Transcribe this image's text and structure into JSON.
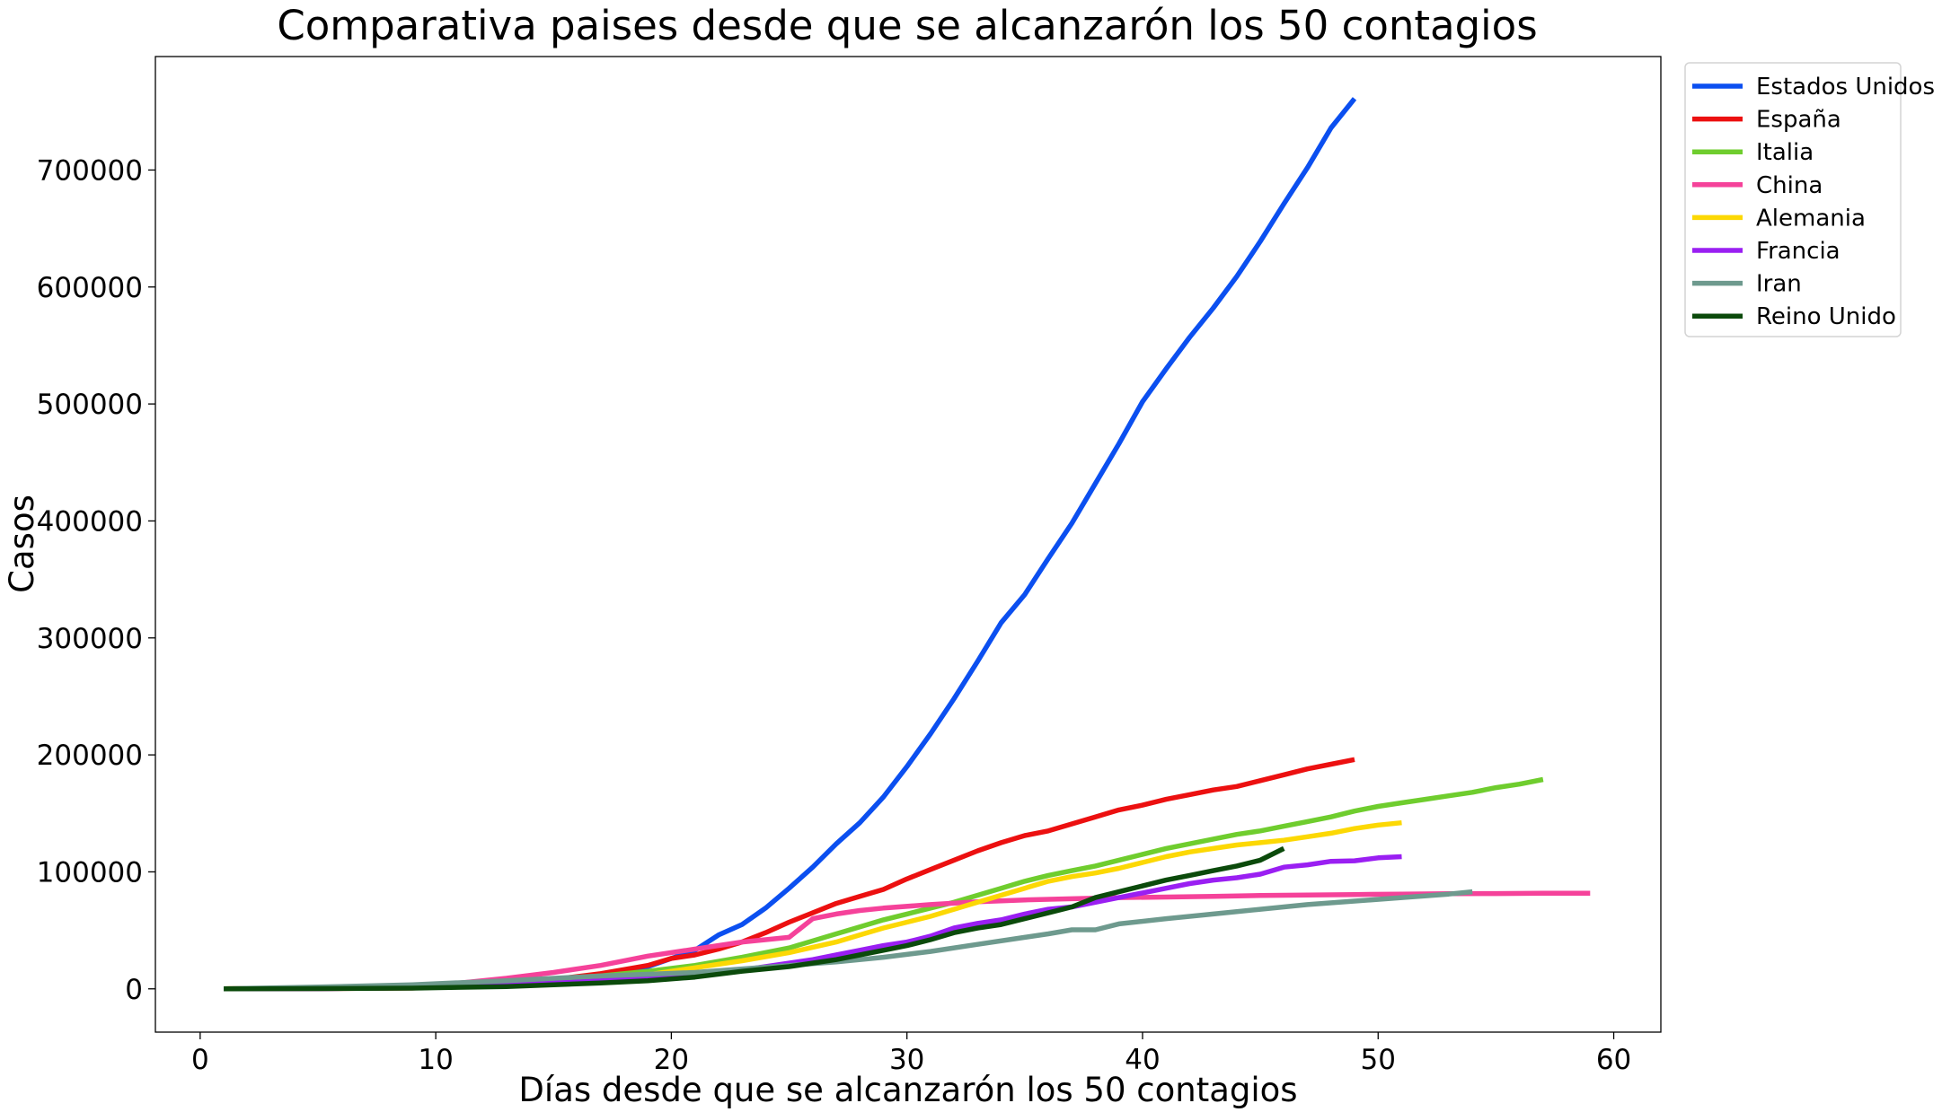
{
  "chart_data": {
    "type": "line",
    "title": "Comparativa paises desde que se alcanzarón los 50 contagios",
    "xlabel": "Días desde que se alcanzarón los 50 contagios",
    "ylabel": "Casos",
    "xlim": [
      -1.9,
      62
    ],
    "ylim": [
      -37000,
      797000
    ],
    "xticks": [
      0,
      10,
      20,
      30,
      40,
      50,
      60
    ],
    "yticks": [
      0,
      100000,
      200000,
      300000,
      400000,
      500000,
      600000,
      700000
    ],
    "grid": false,
    "legend_position": "outside-top-right",
    "series": [
      {
        "name": "Estados Unidos",
        "color": "#0b4ff0",
        "points": [
          [
            1,
            50
          ],
          [
            5,
            200
          ],
          [
            9,
            1000
          ],
          [
            13,
            3500
          ],
          [
            17,
            9500
          ],
          [
            19,
            19000
          ],
          [
            21,
            33000
          ],
          [
            22,
            46000
          ],
          [
            23,
            55000
          ],
          [
            24,
            69000
          ],
          [
            25,
            86000
          ],
          [
            26,
            104000
          ],
          [
            27,
            124000
          ],
          [
            28,
            142000
          ],
          [
            29,
            164000
          ],
          [
            30,
            190000
          ],
          [
            31,
            218000
          ],
          [
            32,
            248000
          ],
          [
            33,
            280000
          ],
          [
            34,
            313000
          ],
          [
            35,
            337000
          ],
          [
            36,
            368000
          ],
          [
            37,
            398000
          ],
          [
            38,
            432000
          ],
          [
            39,
            466000
          ],
          [
            40,
            502000
          ],
          [
            41,
            530000
          ],
          [
            42,
            557000
          ],
          [
            43,
            582000
          ],
          [
            44,
            609000
          ],
          [
            45,
            639000
          ],
          [
            46,
            671000
          ],
          [
            47,
            702000
          ],
          [
            48,
            736000
          ],
          [
            49,
            761000
          ]
        ]
      },
      {
        "name": "España",
        "color": "#ec1010",
        "points": [
          [
            1,
            50
          ],
          [
            5,
            200
          ],
          [
            9,
            700
          ],
          [
            11,
            2000
          ],
          [
            13,
            4500
          ],
          [
            15,
            8000
          ],
          [
            17,
            13000
          ],
          [
            19,
            20000
          ],
          [
            20,
            26000
          ],
          [
            21,
            29000
          ],
          [
            22,
            34000
          ],
          [
            23,
            40000
          ],
          [
            24,
            48000
          ],
          [
            25,
            57000
          ],
          [
            26,
            65000
          ],
          [
            27,
            73000
          ],
          [
            28,
            79000
          ],
          [
            29,
            85000
          ],
          [
            30,
            94000
          ],
          [
            31,
            102000
          ],
          [
            32,
            110000
          ],
          [
            33,
            118000
          ],
          [
            34,
            125000
          ],
          [
            35,
            131000
          ],
          [
            36,
            135000
          ],
          [
            37,
            141000
          ],
          [
            38,
            147000
          ],
          [
            39,
            153000
          ],
          [
            40,
            157000
          ],
          [
            41,
            162000
          ],
          [
            42,
            166000
          ],
          [
            43,
            170000
          ],
          [
            44,
            173000
          ],
          [
            45,
            178000
          ],
          [
            46,
            183000
          ],
          [
            47,
            188000
          ],
          [
            48,
            192000
          ],
          [
            49,
            196000
          ]
        ]
      },
      {
        "name": "Italia",
        "color": "#6fcd2e",
        "points": [
          [
            1,
            50
          ],
          [
            5,
            500
          ],
          [
            9,
            2500
          ],
          [
            13,
            6000
          ],
          [
            17,
            11000
          ],
          [
            19,
            15000
          ],
          [
            21,
            20000
          ],
          [
            23,
            27000
          ],
          [
            25,
            35000
          ],
          [
            27,
            47000
          ],
          [
            28,
            53000
          ],
          [
            29,
            59000
          ],
          [
            30,
            64000
          ],
          [
            31,
            69000
          ],
          [
            32,
            74000
          ],
          [
            33,
            80000
          ],
          [
            34,
            86000
          ],
          [
            35,
            92000
          ],
          [
            36,
            97000
          ],
          [
            37,
            101000
          ],
          [
            38,
            105000
          ],
          [
            39,
            110000
          ],
          [
            40,
            115000
          ],
          [
            41,
            120000
          ],
          [
            42,
            124000
          ],
          [
            43,
            128000
          ],
          [
            44,
            132000
          ],
          [
            45,
            135000
          ],
          [
            46,
            139000
          ],
          [
            47,
            143000
          ],
          [
            48,
            147000
          ],
          [
            49,
            152000
          ],
          [
            50,
            156000
          ],
          [
            51,
            159000
          ],
          [
            52,
            162000
          ],
          [
            53,
            165000
          ],
          [
            54,
            168000
          ],
          [
            55,
            172000
          ],
          [
            56,
            175000
          ],
          [
            57,
            179000
          ]
        ]
      },
      {
        "name": "China",
        "color": "#f5429a",
        "points": [
          [
            1,
            50
          ],
          [
            5,
            500
          ],
          [
            9,
            2500
          ],
          [
            11,
            5000
          ],
          [
            13,
            9000
          ],
          [
            15,
            14000
          ],
          [
            17,
            20000
          ],
          [
            19,
            28000
          ],
          [
            21,
            34000
          ],
          [
            23,
            40000
          ],
          [
            24,
            42000
          ],
          [
            25,
            44000
          ],
          [
            26,
            60000
          ],
          [
            27,
            64000
          ],
          [
            28,
            67000
          ],
          [
            29,
            69000
          ],
          [
            31,
            72000
          ],
          [
            33,
            74500
          ],
          [
            35,
            76000
          ],
          [
            37,
            77000
          ],
          [
            39,
            78000
          ],
          [
            41,
            78500
          ],
          [
            43,
            79000
          ],
          [
            45,
            79800
          ],
          [
            47,
            80200
          ],
          [
            49,
            80600
          ],
          [
            51,
            81000
          ],
          [
            53,
            81300
          ],
          [
            55,
            81500
          ],
          [
            57,
            81700
          ],
          [
            59,
            81800
          ]
        ]
      },
      {
        "name": "Alemania",
        "color": "#fcd804",
        "points": [
          [
            1,
            50
          ],
          [
            5,
            300
          ],
          [
            9,
            1000
          ],
          [
            13,
            3000
          ],
          [
            17,
            7000
          ],
          [
            19,
            12000
          ],
          [
            21,
            18000
          ],
          [
            23,
            24000
          ],
          [
            25,
            31000
          ],
          [
            27,
            40000
          ],
          [
            28,
            46000
          ],
          [
            29,
            52000
          ],
          [
            30,
            57000
          ],
          [
            31,
            62000
          ],
          [
            32,
            68000
          ],
          [
            33,
            74000
          ],
          [
            34,
            80000
          ],
          [
            35,
            86000
          ],
          [
            36,
            92000
          ],
          [
            37,
            96000
          ],
          [
            38,
            99000
          ],
          [
            39,
            103000
          ],
          [
            40,
            108000
          ],
          [
            41,
            113000
          ],
          [
            42,
            117000
          ],
          [
            43,
            120000
          ],
          [
            44,
            123000
          ],
          [
            45,
            125000
          ],
          [
            46,
            127000
          ],
          [
            47,
            130000
          ],
          [
            48,
            133000
          ],
          [
            49,
            137000
          ],
          [
            50,
            140000
          ],
          [
            51,
            142000
          ]
        ]
      },
      {
        "name": "Francia",
        "color": "#9a1ff2",
        "points": [
          [
            1,
            50
          ],
          [
            5,
            200
          ],
          [
            9,
            1000
          ],
          [
            13,
            3000
          ],
          [
            17,
            7000
          ],
          [
            19,
            10000
          ],
          [
            21,
            12000
          ],
          [
            23,
            16000
          ],
          [
            25,
            22000
          ],
          [
            26,
            25000
          ],
          [
            27,
            29000
          ],
          [
            28,
            33000
          ],
          [
            29,
            37000
          ],
          [
            30,
            40000
          ],
          [
            31,
            45000
          ],
          [
            32,
            52000
          ],
          [
            33,
            56000
          ],
          [
            34,
            59000
          ],
          [
            35,
            64000
          ],
          [
            36,
            68000
          ],
          [
            37,
            70000
          ],
          [
            38,
            74000
          ],
          [
            39,
            78000
          ],
          [
            40,
            82000
          ],
          [
            41,
            86000
          ],
          [
            42,
            90000
          ],
          [
            43,
            93000
          ],
          [
            44,
            95000
          ],
          [
            45,
            98000
          ],
          [
            46,
            104000
          ],
          [
            47,
            106000
          ],
          [
            48,
            109000
          ],
          [
            49,
            109500
          ],
          [
            50,
            112000
          ],
          [
            51,
            113000
          ]
        ]
      },
      {
        "name": "Iran",
        "color": "#6e9a8e",
        "points": [
          [
            1,
            50
          ],
          [
            5,
            1500
          ],
          [
            9,
            3500
          ],
          [
            13,
            7000
          ],
          [
            17,
            11000
          ],
          [
            19,
            12500
          ],
          [
            21,
            14000
          ],
          [
            23,
            17000
          ],
          [
            25,
            20000
          ],
          [
            27,
            23000
          ],
          [
            29,
            27000
          ],
          [
            31,
            32000
          ],
          [
            33,
            38000
          ],
          [
            35,
            44000
          ],
          [
            36,
            47000
          ],
          [
            37,
            50500
          ],
          [
            38,
            50500
          ],
          [
            39,
            55500
          ],
          [
            41,
            60000
          ],
          [
            43,
            64000
          ],
          [
            45,
            68000
          ],
          [
            47,
            72000
          ],
          [
            49,
            75000
          ],
          [
            51,
            78000
          ],
          [
            53,
            81000
          ],
          [
            54,
            83000
          ]
        ]
      },
      {
        "name": "Reino Unido",
        "color": "#0b4a0b",
        "points": [
          [
            1,
            50
          ],
          [
            5,
            200
          ],
          [
            9,
            600
          ],
          [
            13,
            2000
          ],
          [
            17,
            5000
          ],
          [
            19,
            7000
          ],
          [
            21,
            10000
          ],
          [
            23,
            15000
          ],
          [
            25,
            19000
          ],
          [
            27,
            25000
          ],
          [
            28,
            29000
          ],
          [
            29,
            33000
          ],
          [
            30,
            37000
          ],
          [
            31,
            42000
          ],
          [
            32,
            48000
          ],
          [
            33,
            52000
          ],
          [
            34,
            55000
          ],
          [
            35,
            60000
          ],
          [
            36,
            65000
          ],
          [
            37,
            70000
          ],
          [
            38,
            78000
          ],
          [
            39,
            83000
          ],
          [
            40,
            88000
          ],
          [
            41,
            93000
          ],
          [
            42,
            97000
          ],
          [
            43,
            101000
          ],
          [
            44,
            105000
          ],
          [
            45,
            110000
          ],
          [
            46,
            120000
          ]
        ]
      }
    ]
  }
}
